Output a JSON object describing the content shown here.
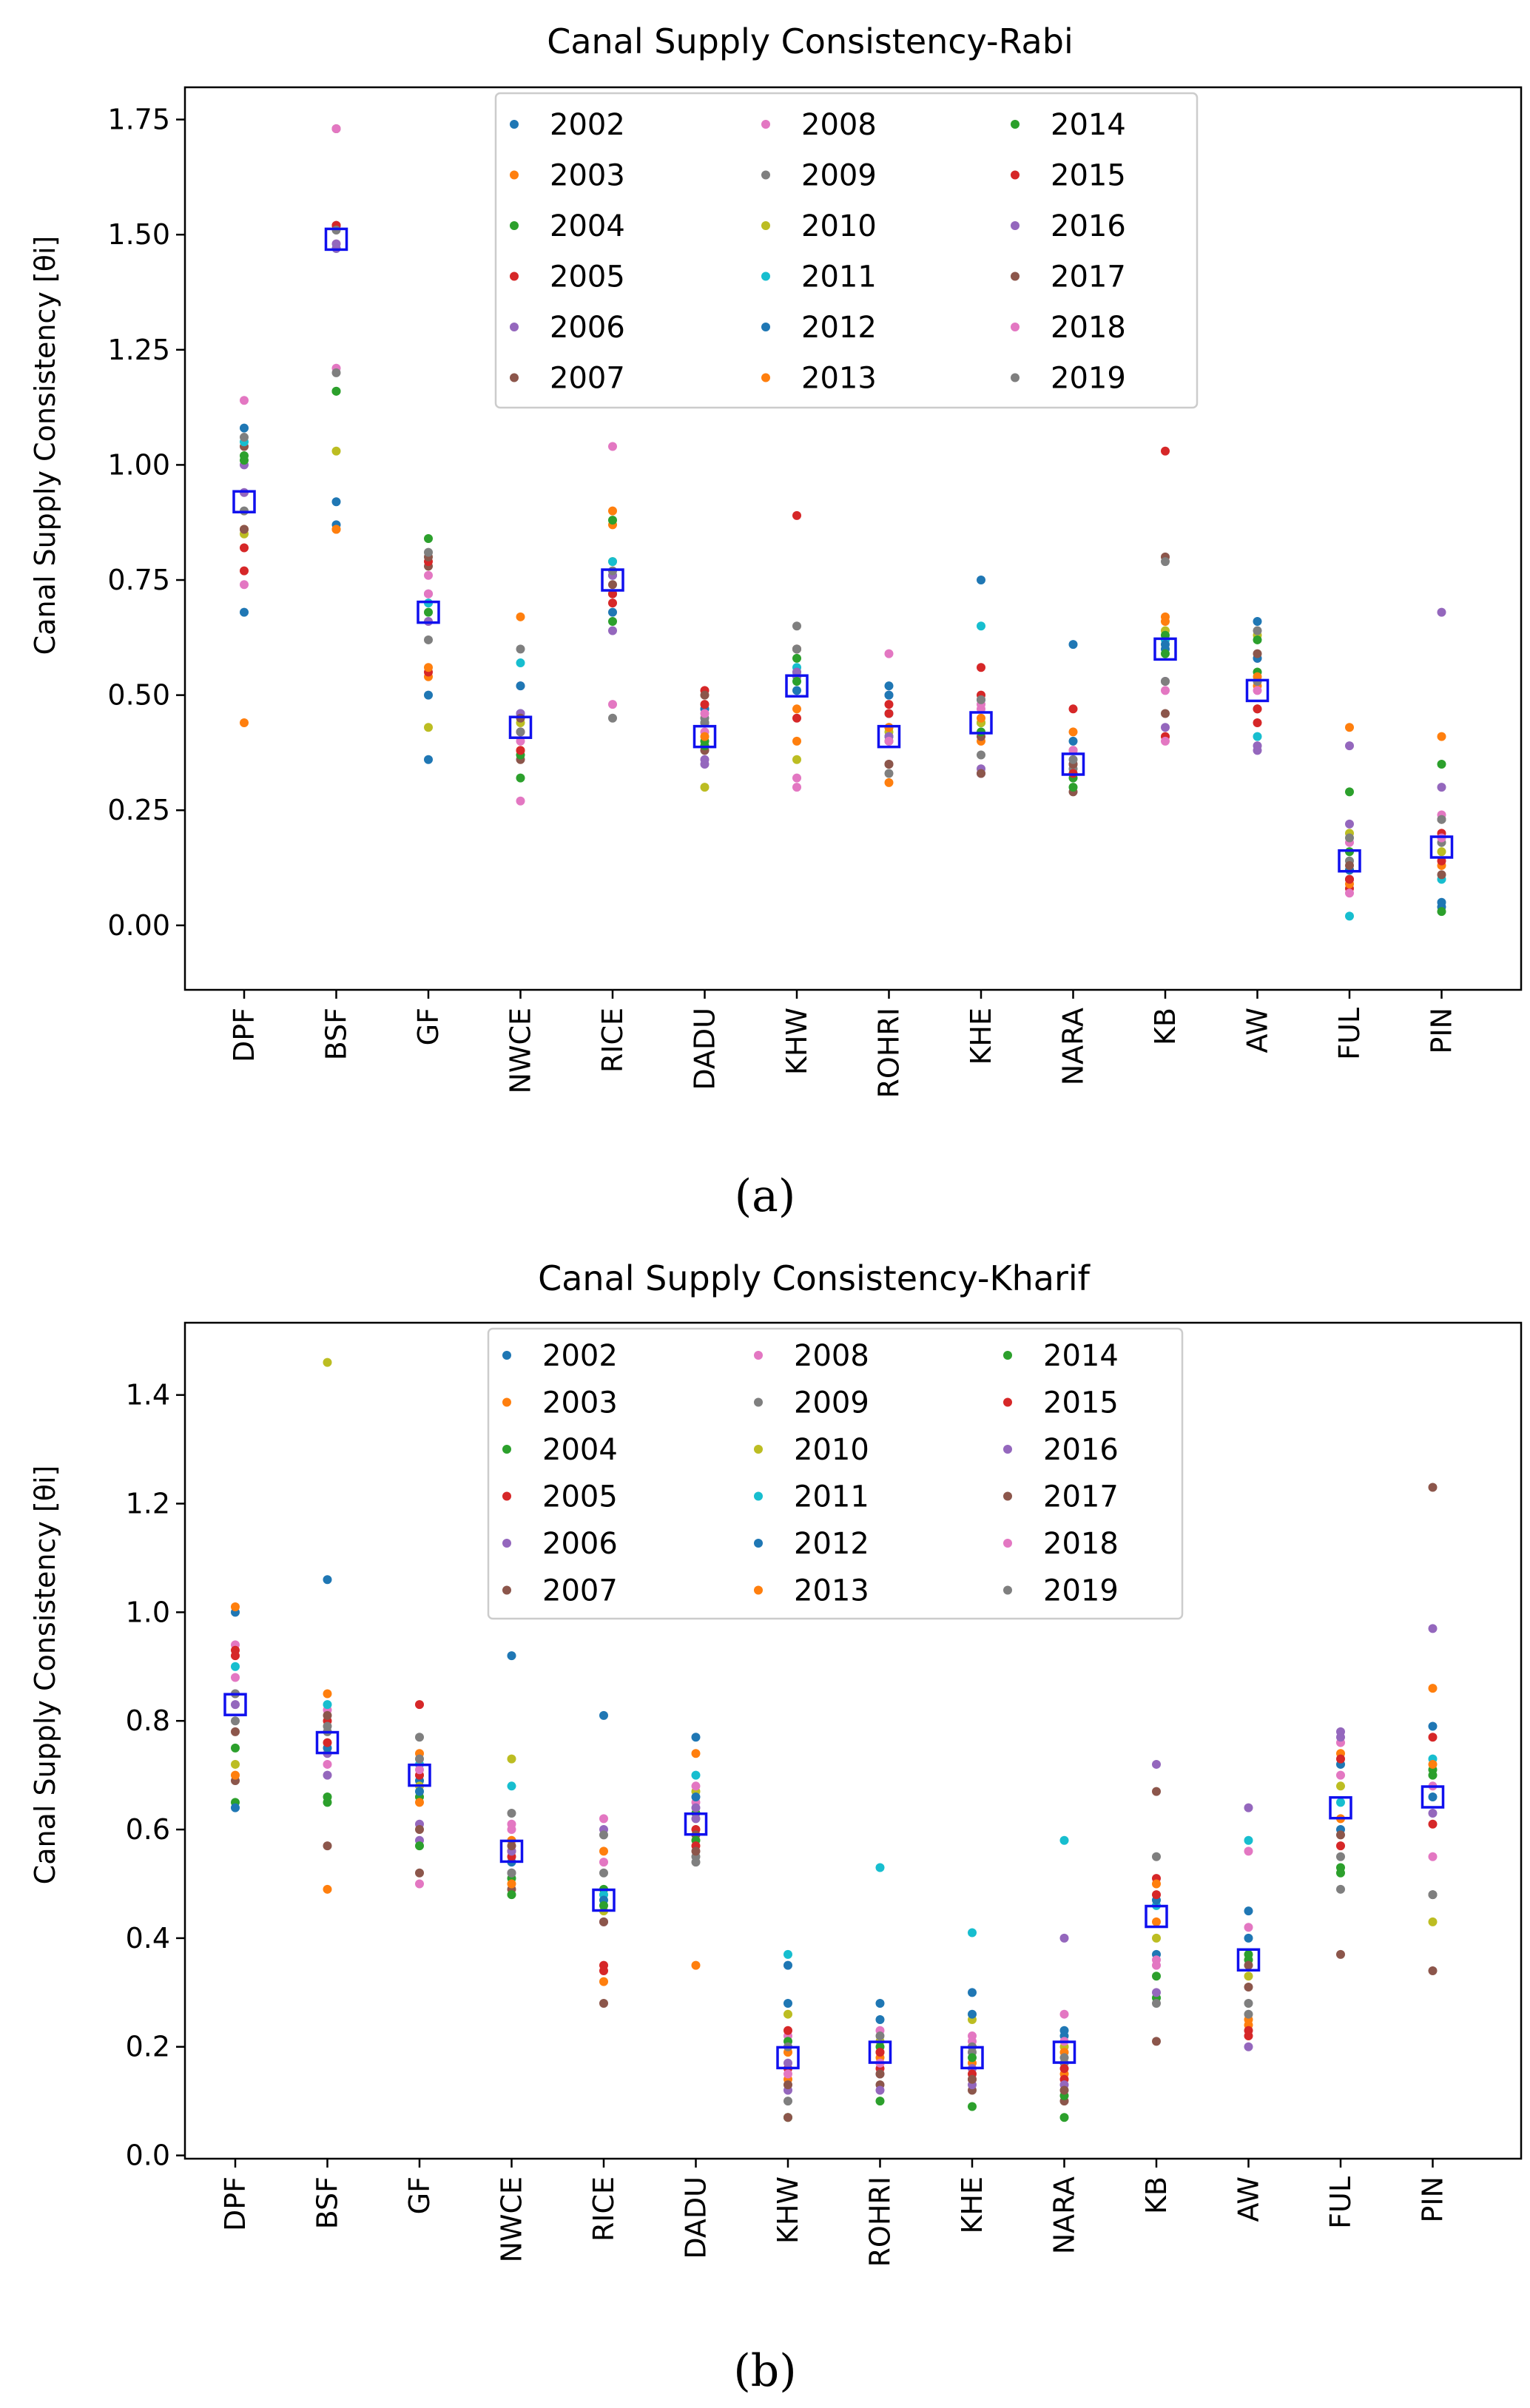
{
  "colors": {
    "2002": "#1f77b4",
    "2003": "#ff7f0e",
    "2004": "#2ca02c",
    "2005": "#d62728",
    "2006": "#9467bd",
    "2007": "#8c564b",
    "2008": "#e377c2",
    "2009": "#7f7f7f",
    "2010": "#bcbd22",
    "2011": "#17becf",
    "2012": "#1f77b4",
    "2013": "#ff7f0e",
    "2014": "#2ca02c",
    "2015": "#d62728",
    "2016": "#9467bd",
    "2017": "#8c564b",
    "2018": "#e377c2",
    "2019": "#7f7f7f",
    "mean": "#1010ee"
  },
  "panel_labels": [
    "(a)",
    "(b)"
  ],
  "chart_data": [
    {
      "type": "scatter",
      "title": "Canal Supply Consistency-Rabi",
      "ylabel": "Canal Supply Consistency [θi]",
      "ylim": [
        -0.14,
        1.82
      ],
      "yticks": [
        0.0,
        0.25,
        0.5,
        0.75,
        1.0,
        1.25,
        1.5,
        1.75
      ],
      "ytick_labels": [
        "0.00",
        "0.25",
        "0.50",
        "0.75",
        "1.00",
        "1.25",
        "1.50",
        "1.75"
      ],
      "legend_position": "top-center",
      "legend_years": [
        "2002",
        "2003",
        "2004",
        "2005",
        "2006",
        "2007",
        "2008",
        "2009",
        "2010",
        "2011",
        "2012",
        "2013",
        "2014",
        "2015",
        "2016",
        "2017",
        "2018",
        "2019"
      ],
      "categories": [
        "DPF",
        "BSF",
        "GF",
        "NWCE",
        "RICE",
        "DADU",
        "KHW",
        "ROHRI",
        "KHE",
        "NARA",
        "KB",
        "AW",
        "FUL",
        "PIN"
      ],
      "means": [
        0.92,
        1.49,
        0.68,
        0.43,
        0.75,
        0.41,
        0.52,
        0.41,
        0.44,
        0.35,
        0.6,
        0.51,
        0.14,
        0.17
      ],
      "values": [
        [
          0.68,
          0.44,
          1.02,
          0.77,
          1.0,
          1.04,
          1.14,
          0.9,
          0.85,
          1.05,
          1.08,
          0.86,
          1.01,
          0.82,
          0.94,
          0.86,
          0.74,
          1.06
        ],
        [
          0.87,
          0.86,
          1.16,
          1.52,
          1.48,
          1.52,
          1.21,
          1.2,
          1.03,
          1.47,
          0.92,
          0.86,
          1.16,
          1.52,
          1.47,
          1.73,
          1.73,
          1.51
        ],
        [
          0.36,
          0.54,
          0.84,
          0.55,
          0.66,
          0.78,
          0.76,
          0.62,
          0.43,
          0.7,
          0.5,
          0.56,
          0.68,
          0.79,
          0.72,
          0.8,
          0.72,
          0.81
        ],
        [
          0.46,
          0.67,
          0.32,
          0.42,
          0.52,
          0.36,
          0.27,
          0.6,
          0.44,
          0.57,
          0.52,
          0.38,
          0.37,
          0.38,
          0.46,
          0.45,
          0.4,
          0.42
        ],
        [
          0.68,
          0.9,
          0.66,
          0.7,
          0.64,
          0.72,
          1.04,
          0.45,
          0.79,
          0.79,
          0.76,
          0.87,
          0.88,
          0.72,
          0.76,
          0.74,
          0.48,
          0.77
        ],
        [
          0.47,
          0.44,
          0.4,
          0.51,
          0.35,
          0.38,
          0.42,
          0.45,
          0.3,
          0.44,
          0.47,
          0.41,
          0.39,
          0.48,
          0.36,
          0.5,
          0.46,
          0.44
        ],
        [
          0.51,
          0.4,
          0.58,
          0.45,
          0.54,
          0.6,
          0.3,
          0.65,
          0.36,
          0.56,
          0.55,
          0.47,
          0.53,
          0.89,
          0.55,
          0.6,
          0.32,
          0.6
        ],
        [
          0.52,
          0.31,
          0.4,
          0.48,
          0.5,
          0.35,
          0.59,
          0.43,
          0.42,
          0.46,
          0.5,
          0.43,
          0.41,
          0.46,
          0.41,
          0.35,
          0.4,
          0.33
        ],
        [
          0.75,
          0.4,
          0.44,
          0.56,
          0.33,
          0.41,
          0.47,
          0.37,
          0.44,
          0.65,
          0.49,
          0.45,
          0.42,
          0.5,
          0.34,
          0.33,
          0.48,
          0.49
        ],
        [
          0.61,
          0.42,
          0.32,
          0.47,
          0.38,
          0.29,
          0.38,
          0.34,
          0.35,
          0.33,
          0.4,
          0.38,
          0.3,
          0.33,
          0.35,
          0.35,
          0.38,
          0.36
        ],
        [
          0.6,
          0.67,
          0.59,
          1.03,
          0.53,
          0.8,
          0.51,
          0.79,
          0.64,
          0.62,
          0.61,
          0.66,
          0.63,
          0.41,
          0.43,
          0.46,
          0.4,
          0.53
        ],
        [
          0.66,
          0.52,
          0.55,
          0.44,
          0.39,
          0.47,
          0.58,
          0.53,
          0.63,
          0.41,
          0.58,
          0.54,
          0.62,
          0.47,
          0.38,
          0.59,
          0.51,
          0.64
        ],
        [
          0.1,
          0.43,
          0.29,
          0.08,
          0.39,
          0.12,
          0.18,
          0.14,
          0.2,
          0.02,
          0.12,
          0.09,
          0.16,
          0.1,
          0.22,
          0.13,
          0.07,
          0.19
        ],
        [
          0.04,
          0.41,
          0.35,
          0.2,
          0.3,
          0.23,
          0.24,
          0.18,
          0.16,
          0.1,
          0.05,
          0.13,
          0.03,
          0.14,
          0.68,
          0.11,
          0.19,
          0.23
        ]
      ]
    },
    {
      "type": "scatter",
      "title": "Canal Supply Consistency-Kharif",
      "ylabel": "Canal Supply Consistency [θi]",
      "ylim": [
        -0.006,
        1.533
      ],
      "yticks": [
        0.0,
        0.2,
        0.4,
        0.6,
        0.8,
        1.0,
        1.2,
        1.4
      ],
      "ytick_labels": [
        "0.0",
        "0.2",
        "0.4",
        "0.6",
        "0.8",
        "1.0",
        "1.2",
        "1.4"
      ],
      "legend_position": "top-center",
      "legend_years": [
        "2002",
        "2003",
        "2004",
        "2005",
        "2006",
        "2007",
        "2008",
        "2009",
        "2010",
        "2011",
        "2012",
        "2013",
        "2014",
        "2015",
        "2016",
        "2017",
        "2018",
        "2019"
      ],
      "categories": [
        "DPF",
        "BSF",
        "GF",
        "NWCE",
        "RICE",
        "DADU",
        "KHW",
        "ROHRI",
        "KHE",
        "NARA",
        "KB",
        "AW",
        "FUL",
        "PIN"
      ],
      "means": [
        0.83,
        0.76,
        0.7,
        0.56,
        0.47,
        0.61,
        0.18,
        0.19,
        0.18,
        0.19,
        0.44,
        0.36,
        0.64,
        0.66
      ],
      "values": [
        [
          1.0,
          1.01,
          0.65,
          0.92,
          0.85,
          0.69,
          0.94,
          0.8,
          0.72,
          0.9,
          0.64,
          0.7,
          0.75,
          0.93,
          0.83,
          0.78,
          0.88,
          0.85
        ],
        [
          1.06,
          0.49,
          0.65,
          0.8,
          0.74,
          0.57,
          0.82,
          0.78,
          1.46,
          0.83,
          0.75,
          0.85,
          0.66,
          0.76,
          0.7,
          0.81,
          0.72,
          0.79
        ],
        [
          0.69,
          0.74,
          0.66,
          0.83,
          0.58,
          0.52,
          0.5,
          0.77,
          0.68,
          0.72,
          0.67,
          0.65,
          0.57,
          0.7,
          0.61,
          0.6,
          0.71,
          0.73
        ],
        [
          0.92,
          0.58,
          0.51,
          0.56,
          0.52,
          0.49,
          0.61,
          0.63,
          0.73,
          0.68,
          0.54,
          0.5,
          0.48,
          0.55,
          0.56,
          0.57,
          0.6,
          0.52
        ],
        [
          0.81,
          0.32,
          0.49,
          0.35,
          0.6,
          0.28,
          0.62,
          0.59,
          0.45,
          0.48,
          0.47,
          0.56,
          0.46,
          0.34,
          0.43,
          0.43,
          0.54,
          0.52
        ],
        [
          0.77,
          0.35,
          0.63,
          0.6,
          0.62,
          0.59,
          0.65,
          0.55,
          0.67,
          0.7,
          0.66,
          0.74,
          0.58,
          0.57,
          0.64,
          0.56,
          0.68,
          0.54
        ],
        [
          0.28,
          0.14,
          0.07,
          0.16,
          0.12,
          0.07,
          0.22,
          0.1,
          0.26,
          0.37,
          0.35,
          0.19,
          0.21,
          0.23,
          0.17,
          0.13,
          0.15,
          0.2
        ],
        [
          0.28,
          0.19,
          0.1,
          0.16,
          0.15,
          0.13,
          0.23,
          0.17,
          0.21,
          0.53,
          0.25,
          0.18,
          0.2,
          0.19,
          0.12,
          0.15,
          0.17,
          0.22
        ],
        [
          0.3,
          0.17,
          0.09,
          0.14,
          0.16,
          0.12,
          0.22,
          0.19,
          0.25,
          0.41,
          0.26,
          0.2,
          0.18,
          0.15,
          0.13,
          0.14,
          0.21,
          0.2
        ],
        [
          0.23,
          0.15,
          0.07,
          0.14,
          0.4,
          0.1,
          0.26,
          0.17,
          0.2,
          0.58,
          0.22,
          0.19,
          0.11,
          0.16,
          0.13,
          0.12,
          0.21,
          0.18
        ],
        [
          0.37,
          0.43,
          0.29,
          0.51,
          0.72,
          0.21,
          0.36,
          0.55,
          0.4,
          0.46,
          0.47,
          0.5,
          0.33,
          0.48,
          0.3,
          0.67,
          0.35,
          0.28
        ],
        [
          0.45,
          0.24,
          0.37,
          0.23,
          0.64,
          0.31,
          0.56,
          0.28,
          0.33,
          0.58,
          0.4,
          0.25,
          0.36,
          0.22,
          0.2,
          0.35,
          0.42,
          0.26
        ],
        [
          0.72,
          0.74,
          0.52,
          0.57,
          0.78,
          0.37,
          0.76,
          0.49,
          0.68,
          0.65,
          0.6,
          0.62,
          0.53,
          0.73,
          0.77,
          0.59,
          0.7,
          0.55
        ],
        [
          0.79,
          0.86,
          0.71,
          0.61,
          0.97,
          0.34,
          0.55,
          0.48,
          0.43,
          0.73,
          0.66,
          0.72,
          0.7,
          0.77,
          0.63,
          1.23,
          0.68,
          0.48
        ]
      ]
    }
  ]
}
